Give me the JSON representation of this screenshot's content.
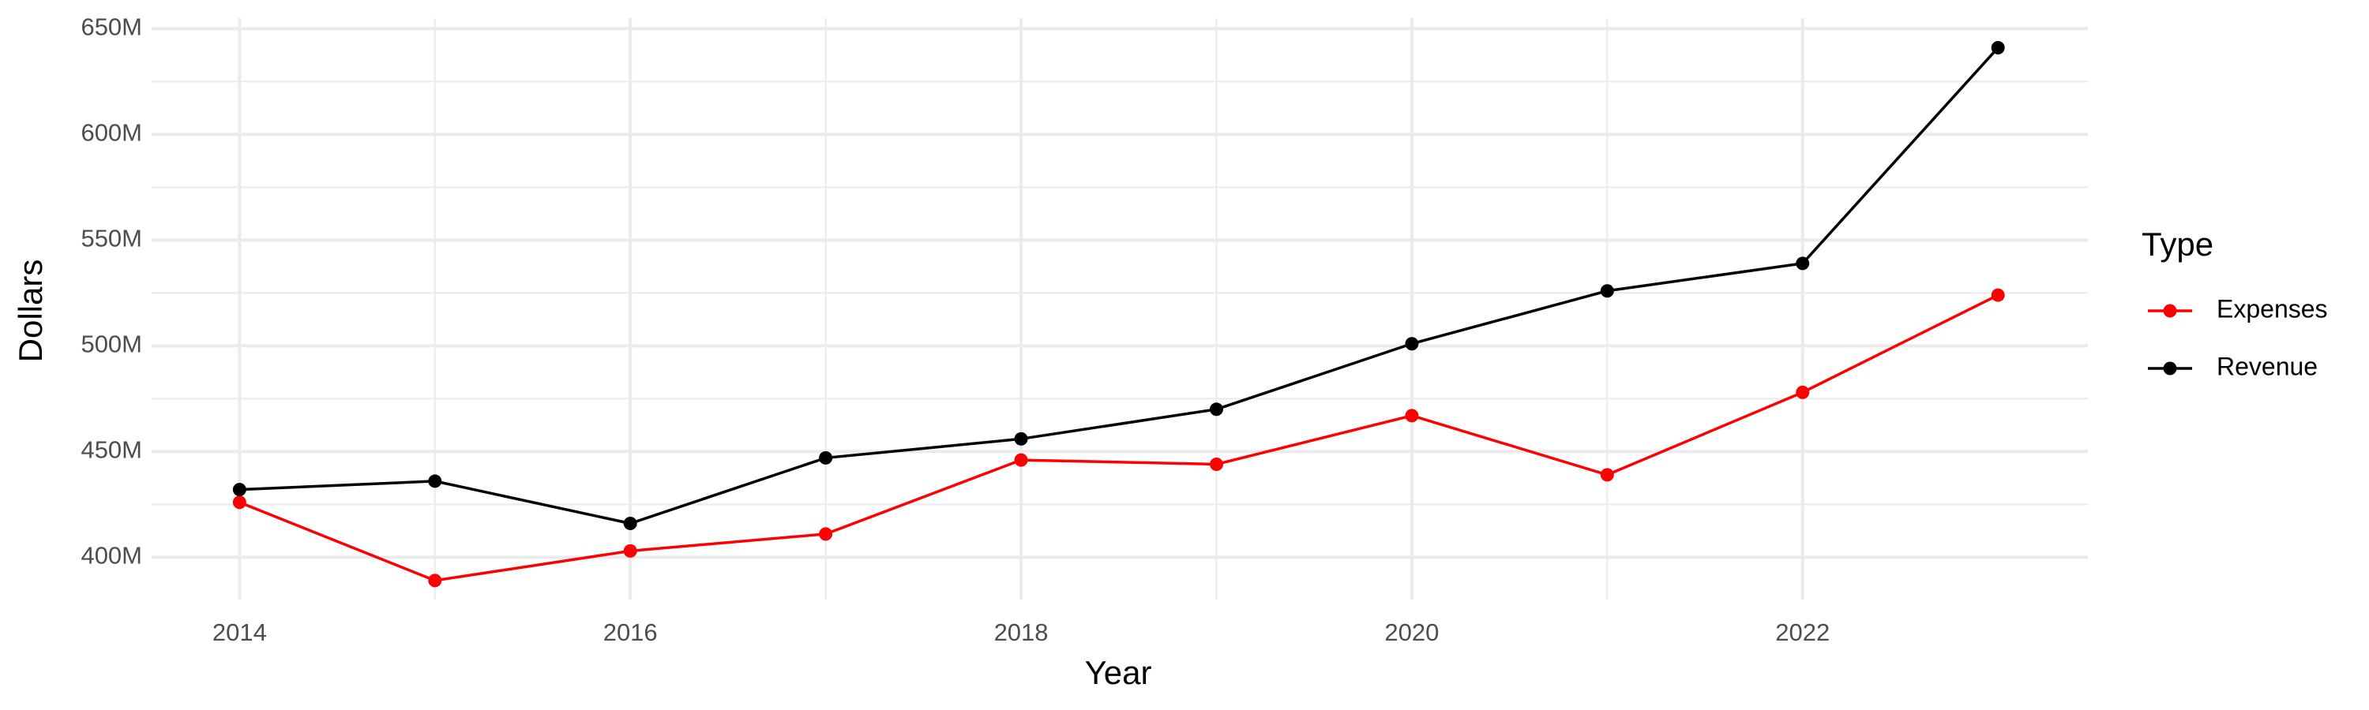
{
  "chart_data": {
    "type": "line",
    "x_label": "Year",
    "y_label": "Dollars",
    "legend_title": "Type",
    "legend_position": "right",
    "grid": true,
    "x": [
      2014,
      2015,
      2016,
      2017,
      2018,
      2019,
      2020,
      2021,
      2022,
      2023
    ],
    "series": [
      {
        "name": "Expenses",
        "color": "#ff0000",
        "values": [
          426000000,
          389000000,
          403000000,
          411000000,
          446000000,
          444000000,
          467000000,
          439000000,
          478000000,
          524000000
        ]
      },
      {
        "name": "Revenue",
        "color": "#000000",
        "values": [
          432000000,
          436000000,
          416000000,
          447000000,
          456000000,
          470000000,
          501000000,
          526000000,
          539000000,
          641000000
        ]
      }
    ],
    "xlim": [
      2013.55,
      2023.46
    ],
    "xticks": [
      2014,
      2016,
      2018,
      2020,
      2022
    ],
    "ylim": [
      380000000,
      655000000
    ],
    "yticks": [
      {
        "value": 400000000,
        "label": "400M"
      },
      {
        "value": 450000000,
        "label": "450M"
      },
      {
        "value": 500000000,
        "label": "500M"
      },
      {
        "value": 550000000,
        "label": "550M"
      },
      {
        "value": 600000000,
        "label": "600M"
      },
      {
        "value": 650000000,
        "label": "650M"
      }
    ]
  }
}
